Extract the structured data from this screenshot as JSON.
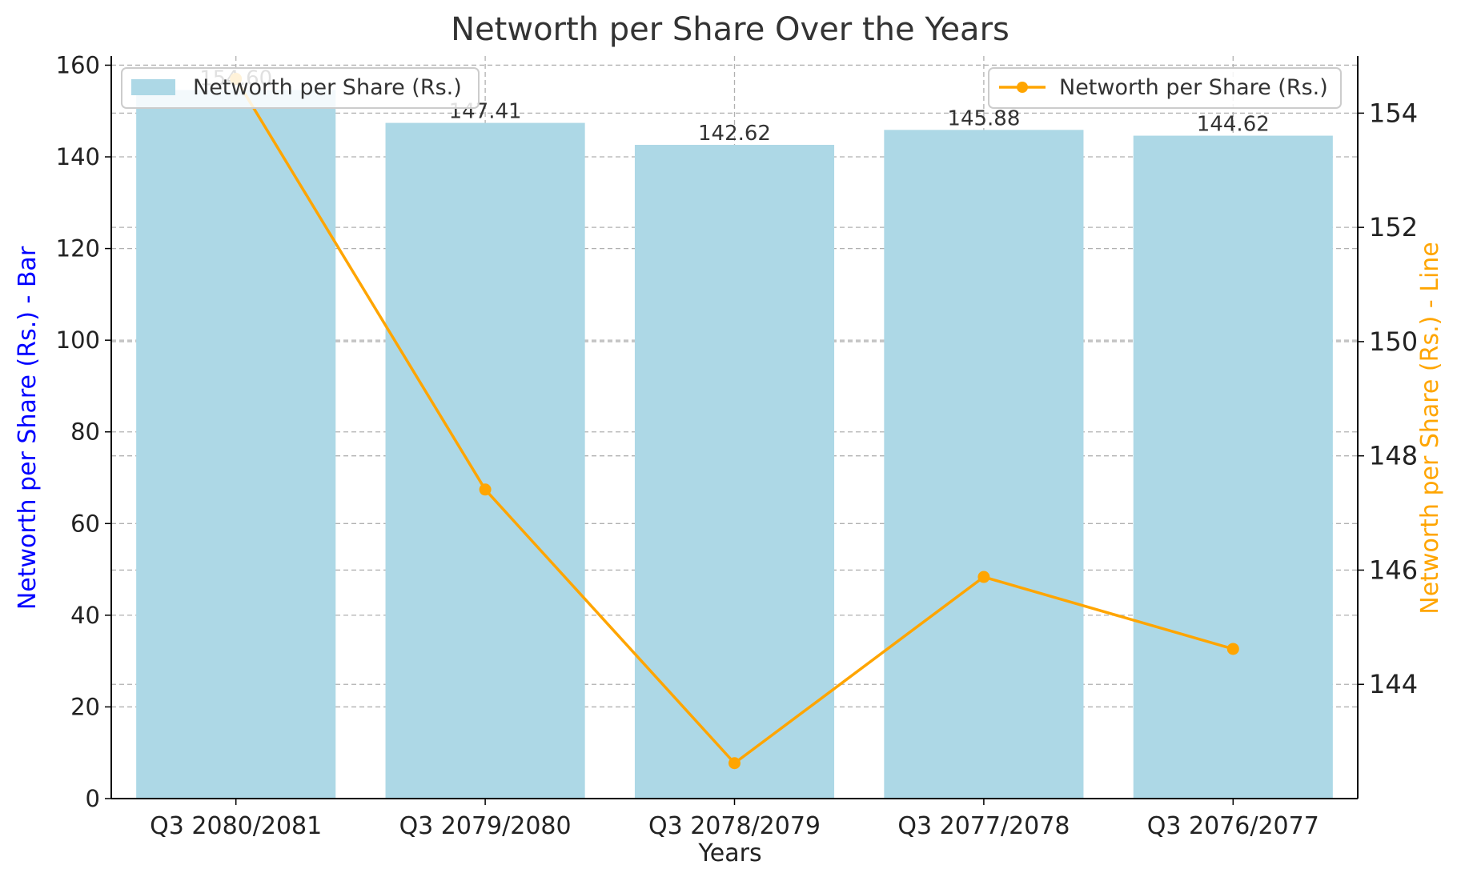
{
  "chart_data": {
    "type": "bar",
    "title": "Networth per Share Over the Years",
    "xlabel": "Years",
    "ylabel_left": "Networth per Share (Rs.) - Bar",
    "ylabel_right": "Networth per Share (Rs.) - Line",
    "categories": [
      "Q3 2080/2081",
      "Q3 2079/2080",
      "Q3 2078/2079",
      "Q3 2077/2078",
      "Q3 2076/2077"
    ],
    "series": [
      {
        "name": "Networth per Share (Rs.)",
        "type": "bar",
        "axis": "left",
        "values": [
          154.6,
          147.41,
          142.62,
          145.88,
          144.62
        ],
        "data_labels": [
          "154.60",
          "147.41",
          "142.62",
          "145.88",
          "144.62"
        ]
      },
      {
        "name": "Networth per Share (Rs.)",
        "type": "line",
        "axis": "right",
        "values": [
          154.6,
          147.41,
          142.62,
          145.88,
          144.62
        ]
      }
    ],
    "ylim_left": [
      0,
      162
    ],
    "yticks_left": [
      0,
      20,
      40,
      60,
      80,
      100,
      120,
      140,
      160
    ],
    "ylim_right": [
      142.0,
      155.0
    ],
    "yticks_right": [
      144,
      146,
      148,
      150,
      152,
      154
    ],
    "grid": true,
    "legend_bar_position": "upper-left",
    "legend_line_position": "upper-right",
    "colors": {
      "bar": "#add8e6",
      "line": "#ffa500",
      "left_axis_label": "#0000ff",
      "right_axis_label": "#ffa500",
      "title": "#333333",
      "grid": "#b0b0b0"
    }
  }
}
